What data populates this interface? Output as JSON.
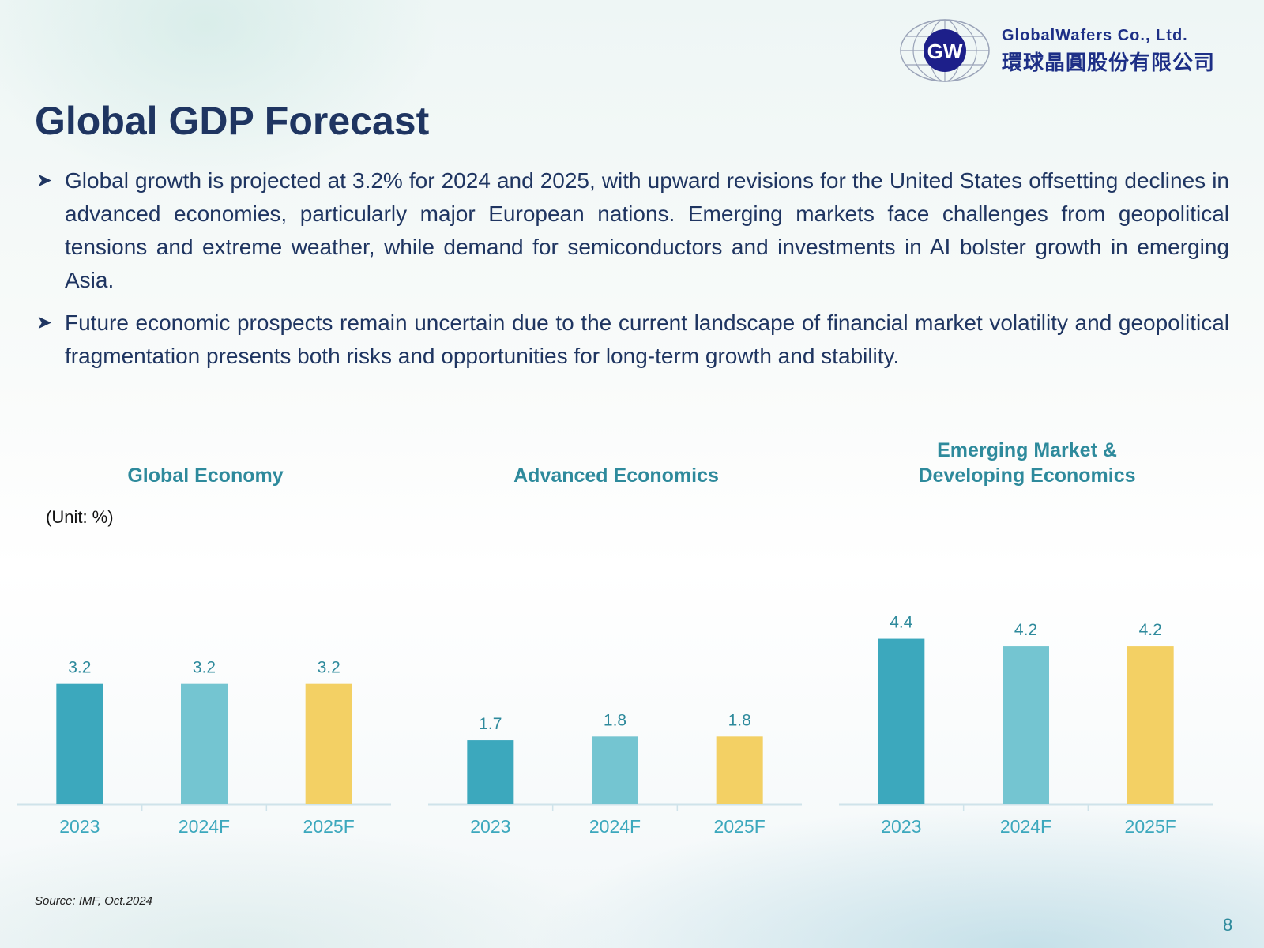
{
  "header": {
    "company_en": "GlobalWafers Co., Ltd.",
    "company_zh": "環球晶圓股份有限公司",
    "logo_mark": "GW",
    "logo_icon": "globe-icon"
  },
  "title": "Global GDP Forecast",
  "bullets": [
    "Global growth is projected at 3.2% for 2024 and 2025, with upward revisions for the United States offsetting declines in advanced economies, particularly major European nations. Emerging markets face challenges from geopolitical tensions and extreme weather, while demand for semiconductors and investments in AI bolster growth in emerging Asia.",
    "Future economic prospects remain uncertain due to the current landscape of financial market volatility and geopolitical fragmentation presents both risks and opportunities for long-term growth and stability."
  ],
  "unit_label": "(Unit: %)",
  "source": "Source: IMF, Oct.2024",
  "page_number": "8",
  "colors": {
    "bar_2023": "#3ca8bd",
    "bar_2024F": "#74c5d1",
    "bar_2025F": "#f3d064",
    "label": "#2e8a9c",
    "axis": "#cfe3ea",
    "title_text": "#1f3561"
  },
  "chart_data": [
    {
      "type": "bar",
      "title": "Global Economy",
      "categories": [
        "2023",
        "2024F",
        "2025F"
      ],
      "values": [
        3.2,
        3.2,
        3.2
      ],
      "ylim": [
        0,
        5.5
      ],
      "xlabel": "",
      "ylabel": "%"
    },
    {
      "type": "bar",
      "title": "Advanced Economics",
      "categories": [
        "2023",
        "2024F",
        "2025F"
      ],
      "values": [
        1.7,
        1.8,
        1.8
      ],
      "ylim": [
        0,
        5.5
      ],
      "xlabel": "",
      "ylabel": "%"
    },
    {
      "type": "bar",
      "title": "Emerging Market & Developing Economics",
      "title_lines": [
        "Emerging Market &",
        "Developing Economics"
      ],
      "categories": [
        "2023",
        "2024F",
        "2025F"
      ],
      "values": [
        4.4,
        4.2,
        4.2
      ],
      "ylim": [
        0,
        5.5
      ],
      "xlabel": "",
      "ylabel": "%"
    }
  ]
}
